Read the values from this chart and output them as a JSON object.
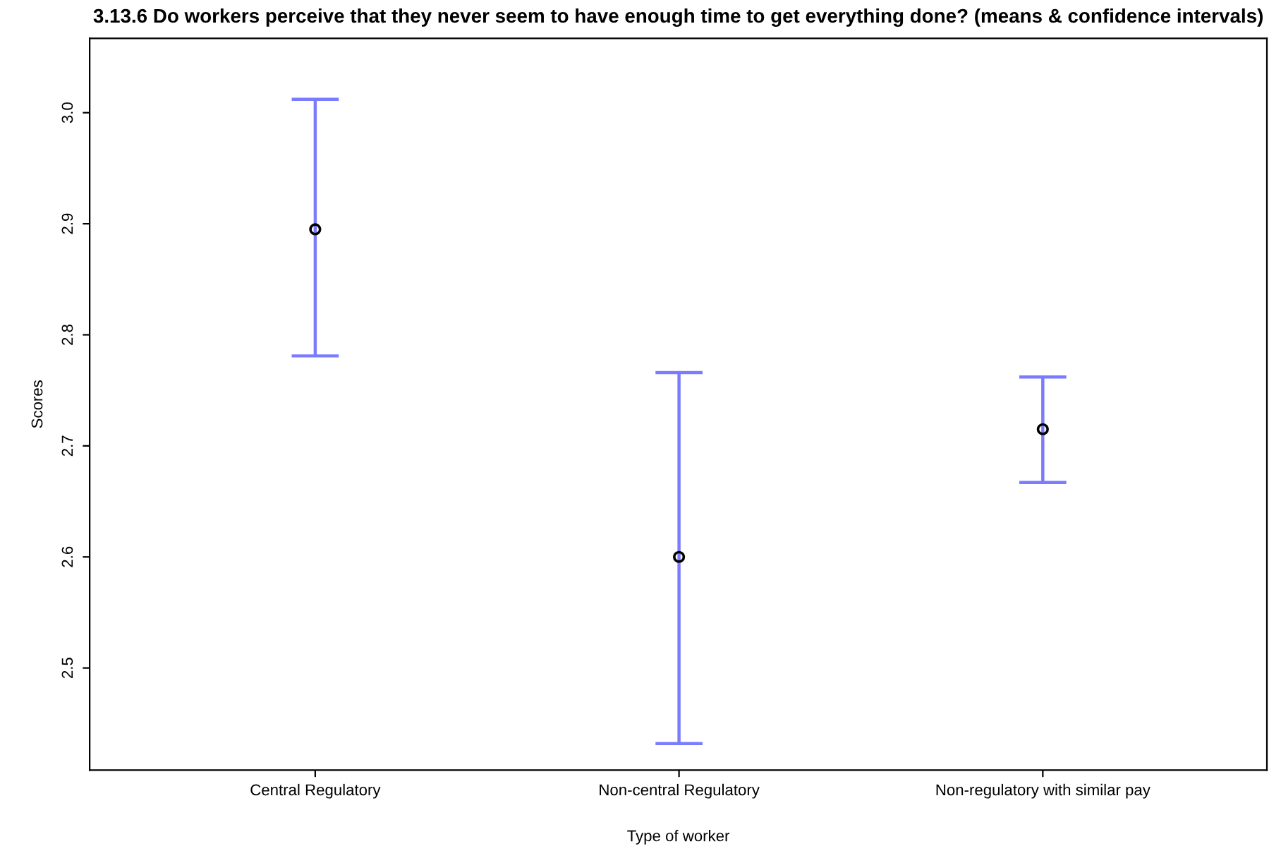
{
  "chart_data": {
    "type": "scatter",
    "title": "3.13.6 Do workers perceive that they never seem to have enough time to get everything done? (means & confidence intervals)",
    "xlabel": "Type of worker",
    "ylabel": "Scores",
    "categories": [
      "Central Regulatory",
      "Non-central Regulatory",
      "Non-regulatory with similar pay"
    ],
    "series": [
      {
        "color": "#000000",
        "marker": "circle",
        "values": [
          2.895,
          2.6,
          2.715
        ],
        "errors": [
          [
            2.781,
            3.012
          ],
          [
            2.432,
            2.766
          ],
          [
            2.667,
            2.762
          ]
        ]
      }
    ],
    "ylim": [
      2.408,
      3.067
    ],
    "yticks": [
      2.5,
      2.6,
      2.7,
      2.8,
      2.9,
      {
        "value": 3.0,
        "label": "3.0"
      }
    ],
    "grid": false,
    "legend": false
  }
}
